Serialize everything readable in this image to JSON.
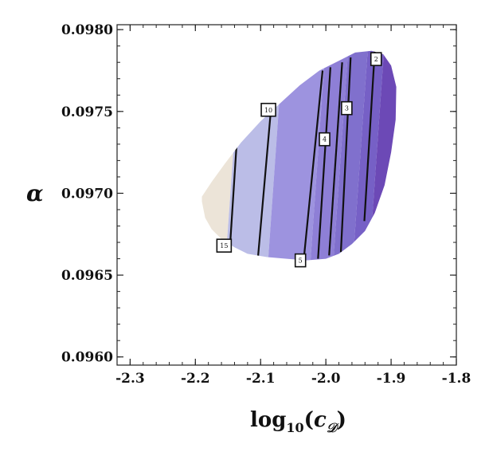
{
  "chart_data": {
    "type": "contour",
    "title": "",
    "xlabel": "log10(cD)",
    "xlabel_parts": {
      "base": "log",
      "sub": "10",
      "open": "(",
      "var": "c",
      "var_sub": "𝒟",
      "close": ")"
    },
    "ylabel": "α",
    "xlim": [
      -2.32,
      -1.8
    ],
    "ylim": [
      0.09595,
      0.09803
    ],
    "x_ticks": [
      -2.3,
      -2.2,
      -2.1,
      -2.0,
      -1.9,
      -1.8
    ],
    "x_tick_labels": [
      "-2.3",
      "-2.2",
      "-2.1",
      "-2.0",
      "-1.9",
      "-1.8"
    ],
    "y_ticks": [
      0.096,
      0.0965,
      0.097,
      0.0975,
      0.098
    ],
    "y_tick_labels": [
      "0.0960",
      "0.0965",
      "0.0970",
      "0.0975",
      "0.0980"
    ],
    "region_boundary": [
      [
        -2.19,
        0.09695
      ],
      [
        -2.185,
        0.09685
      ],
      [
        -2.175,
        0.09678
      ],
      [
        -2.16,
        0.09672
      ],
      [
        -2.14,
        0.09667
      ],
      [
        -2.12,
        0.09663
      ],
      [
        -2.09,
        0.09661
      ],
      [
        -2.06,
        0.0966
      ],
      [
        -2.03,
        0.09659
      ],
      [
        -2.0,
        0.0966
      ],
      [
        -1.98,
        0.09663
      ],
      [
        -1.96,
        0.09669
      ],
      [
        -1.94,
        0.09677
      ],
      [
        -1.925,
        0.09688
      ],
      [
        -1.91,
        0.09705
      ],
      [
        -1.9,
        0.09725
      ],
      [
        -1.893,
        0.09745
      ],
      [
        -1.892,
        0.09765
      ],
      [
        -1.9,
        0.09778
      ],
      [
        -1.912,
        0.09785
      ],
      [
        -1.93,
        0.09787
      ],
      [
        -1.955,
        0.09786
      ],
      [
        -1.98,
        0.09781
      ],
      [
        -2.01,
        0.09775
      ],
      [
        -2.04,
        0.09766
      ],
      [
        -2.07,
        0.09755
      ],
      [
        -2.1,
        0.09744
      ],
      [
        -2.13,
        0.09731
      ],
      [
        -2.155,
        0.09718
      ],
      [
        -2.175,
        0.09707
      ],
      [
        -2.19,
        0.09698
      ]
    ],
    "bands": [
      {
        "from_x": -2.25,
        "to_x": -2.155,
        "color": "#ece4d8"
      },
      {
        "from_x": -2.155,
        "to_x": -2.09,
        "color": "#bbbde7"
      },
      {
        "from_x": -2.09,
        "to_x": -2.025,
        "color": "#9d93df"
      },
      {
        "from_x": -2.025,
        "to_x": -1.99,
        "color": "#8e7fd6"
      },
      {
        "from_x": -1.99,
        "to_x": -1.96,
        "color": "#8070cd"
      },
      {
        "from_x": -1.96,
        "to_x": -1.935,
        "color": "#7660c6"
      },
      {
        "from_x": -1.935,
        "to_x": -1.85,
        "color": "#6c49b6"
      }
    ],
    "contours": [
      {
        "level": "15",
        "bottom": [
          -2.147,
          0.09667
        ],
        "top": [
          -2.136,
          0.09735
        ]
      },
      {
        "level": "10",
        "bottom": [
          -2.104,
          0.09661
        ],
        "top": [
          -2.084,
          0.09752
        ]
      },
      {
        "level": "5",
        "bottom": [
          -2.034,
          0.09659
        ],
        "top": [
          -2.005,
          0.09775
        ]
      },
      {
        "level": "4",
        "bottom": [
          -2.012,
          0.0966
        ],
        "top": [
          -1.993,
          0.09777
        ]
      },
      {
        "level": "",
        "bottom": [
          -1.995,
          0.09662
        ],
        "top": [
          -1.975,
          0.0978
        ]
      },
      {
        "level": "3",
        "bottom": [
          -1.977,
          0.09664
        ],
        "top": [
          -1.962,
          0.09783
        ]
      },
      {
        "level": "2",
        "bottom": [
          -1.941,
          0.09683
        ],
        "top": [
          -1.925,
          0.09787
        ]
      }
    ],
    "contour_labels": [
      {
        "text": "15",
        "x": -2.156,
        "y": 0.09668
      },
      {
        "text": "10",
        "x": -2.088,
        "y": 0.09751
      },
      {
        "text": "5",
        "x": -2.039,
        "y": 0.09659
      },
      {
        "text": "4",
        "x": -2.002,
        "y": 0.09733
      },
      {
        "text": "3",
        "x": -1.968,
        "y": 0.09752
      },
      {
        "text": "2",
        "x": -1.923,
        "y": 0.09782
      }
    ]
  }
}
